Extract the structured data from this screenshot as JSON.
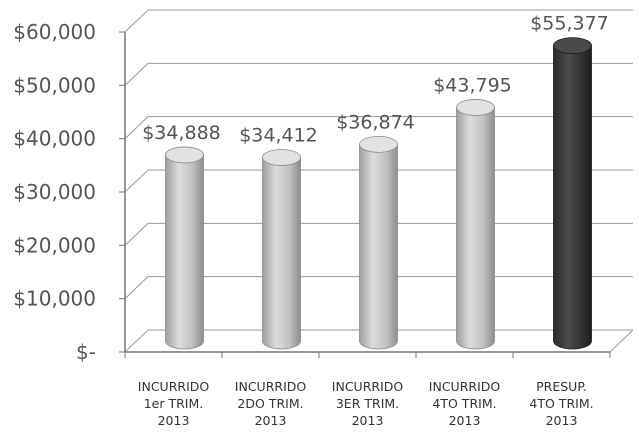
{
  "chart_data": {
    "type": "bar",
    "title": "",
    "xlabel": "",
    "ylabel": "",
    "ylim": [
      0,
      60000
    ],
    "grid": true,
    "legend": "none",
    "yticks": [
      0,
      10000,
      20000,
      30000,
      40000,
      50000,
      60000
    ],
    "ytick_labels": [
      "$-",
      "$10,000",
      "$20,000",
      "$30,000",
      "$40,000",
      "$50,000",
      "$60,000"
    ],
    "categories": [
      [
        "INCURRIDO",
        "1er TRIM.",
        "2013"
      ],
      [
        "INCURRIDO",
        "2DO TRIM.",
        "2013"
      ],
      [
        "INCURRIDO",
        "3ER TRIM.",
        "2013"
      ],
      [
        "INCURRIDO",
        "4TO TRIM.",
        "2013"
      ],
      [
        "PRESUP.",
        "4TO TRIM.",
        "2013"
      ]
    ],
    "values": [
      34888,
      34412,
      36874,
      43795,
      55377
    ],
    "value_labels": [
      "$34,888",
      "$34,412",
      "$36,874",
      "$43,795",
      "$55,377"
    ],
    "colors": {
      "incurred_bar": "#c4c4c4",
      "budget_bar": "#3a3a3a",
      "grid": "#9a9a9a",
      "text": "#555555"
    }
  }
}
